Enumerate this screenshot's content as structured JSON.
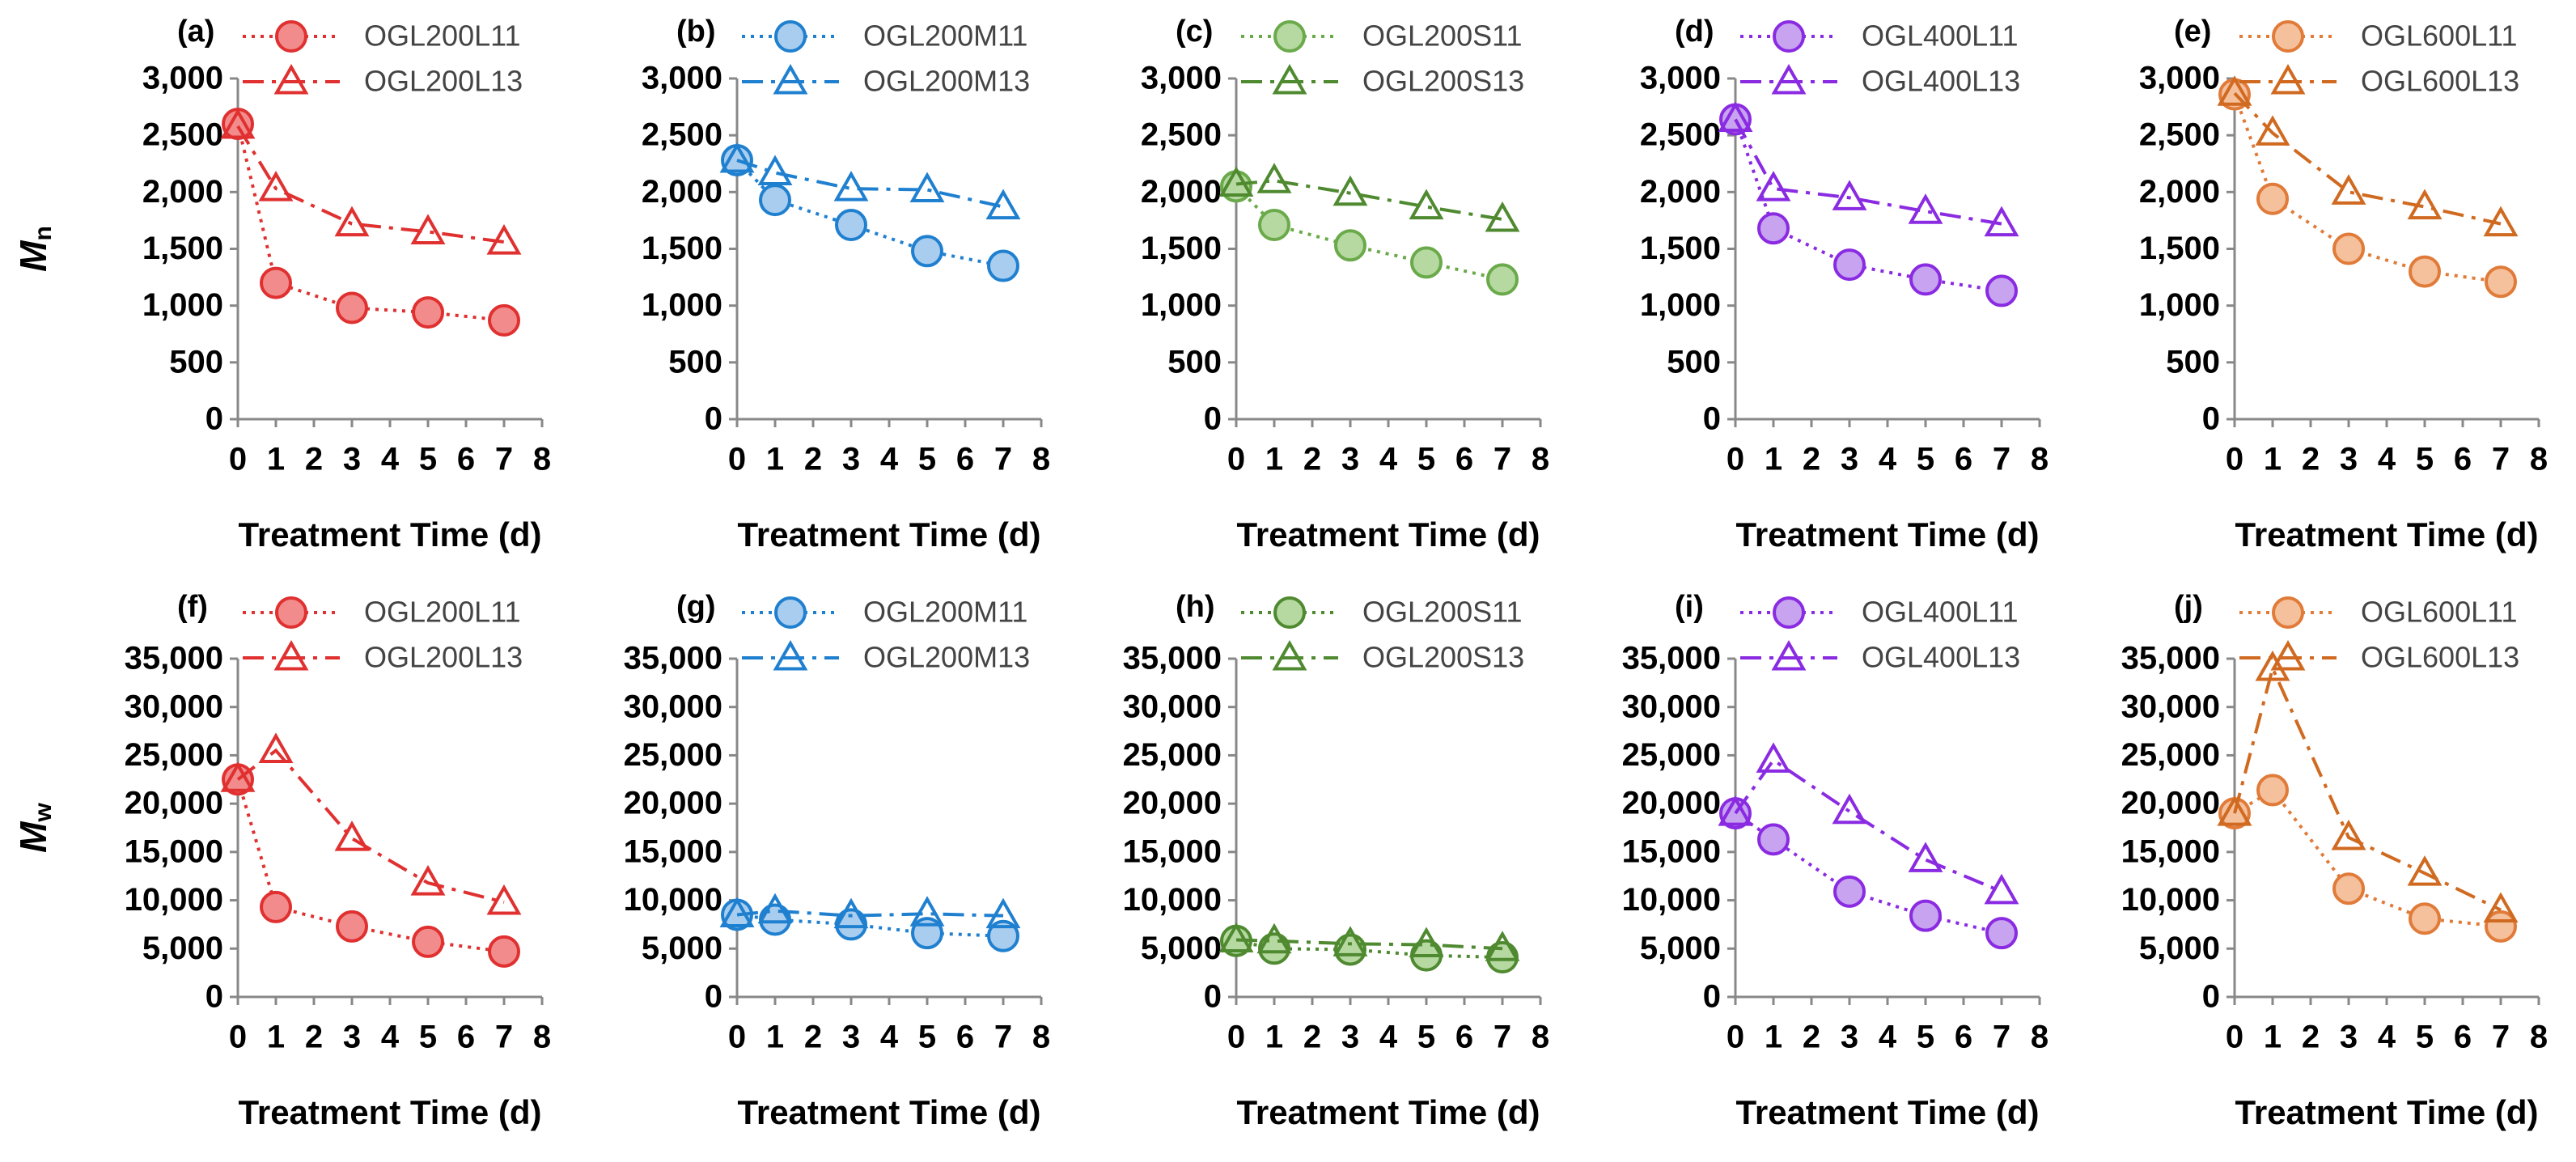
{
  "chart_data": [
    {
      "type": "line",
      "panel_label": "(a)",
      "ylabel_main": "M",
      "ylabel_sub": "n",
      "xlabel": "Treatment Time (d)",
      "x": [
        0,
        1,
        3,
        5,
        7
      ],
      "xlim": [
        0,
        8
      ],
      "xticks": [
        0,
        1,
        2,
        3,
        4,
        5,
        6,
        7,
        8
      ],
      "ylim": [
        0,
        3000
      ],
      "yticks": [
        0,
        500,
        {
          "value": 1000,
          "label": "1,000"
        },
        {
          "value": 1500,
          "label": "1,500"
        },
        {
          "value": 2000,
          "label": "2,000"
        },
        {
          "value": 2500,
          "label": "2,500"
        },
        {
          "value": 3000,
          "label": "3,000"
        }
      ],
      "legend": true,
      "series": [
        {
          "name": "OGL200L11",
          "color": "#e03030",
          "fill": "#f28b8b",
          "marker": "circle",
          "dash": "dotted",
          "values": [
            2600,
            1200,
            980,
            940,
            870
          ]
        },
        {
          "name": "OGL200L13",
          "color": "#e03030",
          "fill": "none",
          "marker": "triangle",
          "dash": "dashdot",
          "values": [
            2580,
            2030,
            1720,
            1650,
            1560
          ]
        }
      ]
    },
    {
      "type": "line",
      "panel_label": "(b)",
      "xlabel": "Treatment Time (d)",
      "x": [
        0,
        1,
        3,
        5,
        7
      ],
      "xlim": [
        0,
        8
      ],
      "xticks": [
        0,
        1,
        2,
        3,
        4,
        5,
        6,
        7,
        8
      ],
      "ylim": [
        0,
        3000
      ],
      "yticks": [
        0,
        500,
        {
          "value": 1000,
          "label": "1,000"
        },
        {
          "value": 1500,
          "label": "1,500"
        },
        {
          "value": 2000,
          "label": "2,000"
        },
        {
          "value": 2500,
          "label": "2,500"
        },
        {
          "value": 3000,
          "label": "3,000"
        }
      ],
      "legend": true,
      "series": [
        {
          "name": "OGL200M11",
          "color": "#2080d0",
          "fill": "#a9cdee",
          "marker": "circle",
          "dash": "dotted",
          "values": [
            2280,
            1930,
            1710,
            1480,
            1350
          ]
        },
        {
          "name": "OGL200M13",
          "color": "#2080d0",
          "fill": "none",
          "marker": "triangle",
          "dash": "dashdot",
          "values": [
            2280,
            2170,
            2030,
            2020,
            1870
          ]
        }
      ]
    },
    {
      "type": "line",
      "panel_label": "(c)",
      "xlabel": "Treatment Time (d)",
      "x": [
        0,
        1,
        3,
        5,
        7
      ],
      "xlim": [
        0,
        8
      ],
      "xticks": [
        0,
        1,
        2,
        3,
        4,
        5,
        6,
        7,
        8
      ],
      "ylim": [
        0,
        3000
      ],
      "yticks": [
        0,
        500,
        {
          "value": 1000,
          "label": "1,000"
        },
        {
          "value": 1500,
          "label": "1,500"
        },
        {
          "value": 2000,
          "label": "2,000"
        },
        {
          "value": 2500,
          "label": "2,500"
        },
        {
          "value": 3000,
          "label": "3,000"
        }
      ],
      "legend": true,
      "series": [
        {
          "name": "OGL200S11",
          "color": "#6aaa4a",
          "fill": "#b5d9a0",
          "marker": "circle",
          "dash": "dotted",
          "values": [
            2050,
            1710,
            1530,
            1380,
            1230
          ]
        },
        {
          "name": "OGL200S13",
          "color": "#4f8a30",
          "fill": "none",
          "marker": "triangle",
          "dash": "dashdot",
          "values": [
            2070,
            2100,
            1990,
            1870,
            1760
          ]
        }
      ]
    },
    {
      "type": "line",
      "panel_label": "(d)",
      "xlabel": "Treatment Time (d)",
      "x": [
        0,
        1,
        3,
        5,
        7
      ],
      "xlim": [
        0,
        8
      ],
      "xticks": [
        0,
        1,
        2,
        3,
        4,
        5,
        6,
        7,
        8
      ],
      "ylim": [
        0,
        3000
      ],
      "yticks": [
        0,
        500,
        {
          "value": 1000,
          "label": "1,000"
        },
        {
          "value": 1500,
          "label": "1,500"
        },
        {
          "value": 2000,
          "label": "2,000"
        },
        {
          "value": 2500,
          "label": "2,500"
        },
        {
          "value": 3000,
          "label": "3,000"
        }
      ],
      "legend": true,
      "series": [
        {
          "name": "OGL400L11",
          "color": "#8a2be2",
          "fill": "#c7a3f0",
          "marker": "circle",
          "dash": "dotted",
          "values": [
            2640,
            1680,
            1360,
            1230,
            1130
          ]
        },
        {
          "name": "OGL400L13",
          "color": "#8a2be2",
          "fill": "none",
          "marker": "triangle",
          "dash": "dashdot",
          "values": [
            2640,
            2030,
            1950,
            1830,
            1720
          ]
        }
      ]
    },
    {
      "type": "line",
      "panel_label": "(e)",
      "xlabel": "Treatment Time (d)",
      "x": [
        0,
        1,
        3,
        5,
        7
      ],
      "xlim": [
        0,
        8
      ],
      "xticks": [
        0,
        1,
        2,
        3,
        4,
        5,
        6,
        7,
        8
      ],
      "ylim": [
        0,
        3000
      ],
      "yticks": [
        0,
        500,
        {
          "value": 1000,
          "label": "1,000"
        },
        {
          "value": 1500,
          "label": "1,500"
        },
        {
          "value": 2000,
          "label": "2,000"
        },
        {
          "value": 2500,
          "label": "2,500"
        },
        {
          "value": 3000,
          "label": "3,000"
        }
      ],
      "legend": true,
      "series": [
        {
          "name": "OGL600L11",
          "color": "#e07b39",
          "fill": "#f5c09c",
          "marker": "circle",
          "dash": "dotted",
          "values": [
            2860,
            1940,
            1500,
            1300,
            1210
          ]
        },
        {
          "name": "OGL600L13",
          "color": "#d06a20",
          "fill": "none",
          "marker": "triangle",
          "dash": "dashdot",
          "values": [
            2870,
            2520,
            2000,
            1870,
            1720
          ]
        }
      ]
    },
    {
      "type": "line",
      "panel_label": "(f)",
      "ylabel_main": "M",
      "ylabel_sub": "w",
      "xlabel": "Treatment Time (d)",
      "x": [
        0,
        1,
        3,
        5,
        7
      ],
      "xlim": [
        0,
        8
      ],
      "xticks": [
        0,
        1,
        2,
        3,
        4,
        5,
        6,
        7,
        8
      ],
      "ylim": [
        0,
        35000
      ],
      "yticks": [
        0,
        {
          "value": 5000,
          "label": "5,000"
        },
        {
          "value": 10000,
          "label": "10,000"
        },
        {
          "value": 15000,
          "label": "15,000"
        },
        {
          "value": 20000,
          "label": "20,000"
        },
        {
          "value": 25000,
          "label": "25,000"
        },
        {
          "value": 30000,
          "label": "30,000"
        },
        {
          "value": 35000,
          "label": "35,000"
        }
      ],
      "legend": true,
      "series": [
        {
          "name": "OGL200L11",
          "color": "#e03030",
          "fill": "#f28b8b",
          "marker": "circle",
          "dash": "dotted",
          "values": [
            22500,
            9300,
            7300,
            5700,
            4700
          ]
        },
        {
          "name": "OGL200L13",
          "color": "#e03030",
          "fill": "none",
          "marker": "triangle",
          "dash": "dashdot",
          "values": [
            22500,
            25500,
            16400,
            11800,
            9800
          ]
        }
      ]
    },
    {
      "type": "line",
      "panel_label": "(g)",
      "xlabel": "Treatment Time (d)",
      "x": [
        0,
        1,
        3,
        5,
        7
      ],
      "xlim": [
        0,
        8
      ],
      "xticks": [
        0,
        1,
        2,
        3,
        4,
        5,
        6,
        7,
        8
      ],
      "ylim": [
        0,
        35000
      ],
      "yticks": [
        0,
        {
          "value": 5000,
          "label": "5,000"
        },
        {
          "value": 10000,
          "label": "10,000"
        },
        {
          "value": 15000,
          "label": "15,000"
        },
        {
          "value": 20000,
          "label": "20,000"
        },
        {
          "value": 25000,
          "label": "25,000"
        },
        {
          "value": 30000,
          "label": "30,000"
        },
        {
          "value": 35000,
          "label": "35,000"
        }
      ],
      "legend": true,
      "series": [
        {
          "name": "OGL200M11",
          "color": "#2080d0",
          "fill": "#a9cdee",
          "marker": "circle",
          "dash": "dotted",
          "values": [
            8500,
            8000,
            7500,
            6600,
            6300
          ]
        },
        {
          "name": "OGL200M13",
          "color": "#2080d0",
          "fill": "none",
          "marker": "triangle",
          "dash": "dashdot",
          "values": [
            8500,
            8900,
            8400,
            8600,
            8400
          ]
        }
      ]
    },
    {
      "type": "line",
      "panel_label": "(h)",
      "xlabel": "Treatment Time (d)",
      "x": [
        0,
        1,
        3,
        5,
        7
      ],
      "xlim": [
        0,
        8
      ],
      "xticks": [
        0,
        1,
        2,
        3,
        4,
        5,
        6,
        7,
        8
      ],
      "ylim": [
        0,
        35000
      ],
      "yticks": [
        0,
        {
          "value": 5000,
          "label": "5,000"
        },
        {
          "value": 10000,
          "label": "10,000"
        },
        {
          "value": 15000,
          "label": "15,000"
        },
        {
          "value": 20000,
          "label": "20,000"
        },
        {
          "value": 25000,
          "label": "25,000"
        },
        {
          "value": 30000,
          "label": "30,000"
        },
        {
          "value": 35000,
          "label": "35,000"
        }
      ],
      "legend": true,
      "series": [
        {
          "name": "OGL200S11",
          "color": "#4f8a30",
          "fill": "#b5d9a0",
          "marker": "circle",
          "dash": "dotted",
          "values": [
            5800,
            5000,
            4900,
            4300,
            4100
          ]
        },
        {
          "name": "OGL200S13",
          "color": "#4f8a30",
          "fill": "none",
          "marker": "triangle",
          "dash": "dashdot",
          "values": [
            5900,
            5800,
            5500,
            5400,
            5000
          ]
        }
      ]
    },
    {
      "type": "line",
      "panel_label": "(i)",
      "xlabel": "Treatment Time (d)",
      "x": [
        0,
        1,
        3,
        5,
        7
      ],
      "xlim": [
        0,
        8
      ],
      "xticks": [
        0,
        1,
        2,
        3,
        4,
        5,
        6,
        7,
        8
      ],
      "ylim": [
        0,
        35000
      ],
      "yticks": [
        0,
        {
          "value": 5000,
          "label": "5,000"
        },
        {
          "value": 10000,
          "label": "10,000"
        },
        {
          "value": 15000,
          "label": "15,000"
        },
        {
          "value": 20000,
          "label": "20,000"
        },
        {
          "value": 25000,
          "label": "25,000"
        },
        {
          "value": 30000,
          "label": "30,000"
        },
        {
          "value": 35000,
          "label": "35,000"
        }
      ],
      "legend": true,
      "series": [
        {
          "name": "OGL400L11",
          "color": "#8a2be2",
          "fill": "#c7a3f0",
          "marker": "circle",
          "dash": "dotted",
          "values": [
            19000,
            16300,
            10900,
            8400,
            6600
          ]
        },
        {
          "name": "OGL400L13",
          "color": "#8a2be2",
          "fill": "none",
          "marker": "triangle",
          "dash": "dashdot",
          "values": [
            19000,
            24500,
            19200,
            14200,
            10900
          ]
        }
      ]
    },
    {
      "type": "line",
      "panel_label": "(j)",
      "xlabel": "Treatment Time (d)",
      "x": [
        0,
        1,
        3,
        5,
        7
      ],
      "xlim": [
        0,
        8
      ],
      "xticks": [
        0,
        1,
        2,
        3,
        4,
        5,
        6,
        7,
        8
      ],
      "ylim": [
        0,
        35000
      ],
      "yticks": [
        0,
        {
          "value": 5000,
          "label": "5,000"
        },
        {
          "value": 10000,
          "label": "10,000"
        },
        {
          "value": 15000,
          "label": "15,000"
        },
        {
          "value": 20000,
          "label": "20,000"
        },
        {
          "value": 25000,
          "label": "25,000"
        },
        {
          "value": 30000,
          "label": "30,000"
        },
        {
          "value": 35000,
          "label": "35,000"
        }
      ],
      "legend": true,
      "series": [
        {
          "name": "OGL600L11",
          "color": "#e07b39",
          "fill": "#f5c09c",
          "marker": "circle",
          "dash": "dotted",
          "values": [
            19000,
            21400,
            11200,
            8100,
            7300
          ]
        },
        {
          "name": "OGL600L13",
          "color": "#d06a20",
          "fill": "none",
          "marker": "triangle",
          "dash": "dashdot",
          "values": [
            19000,
            34000,
            16500,
            12800,
            9000
          ]
        }
      ]
    }
  ]
}
